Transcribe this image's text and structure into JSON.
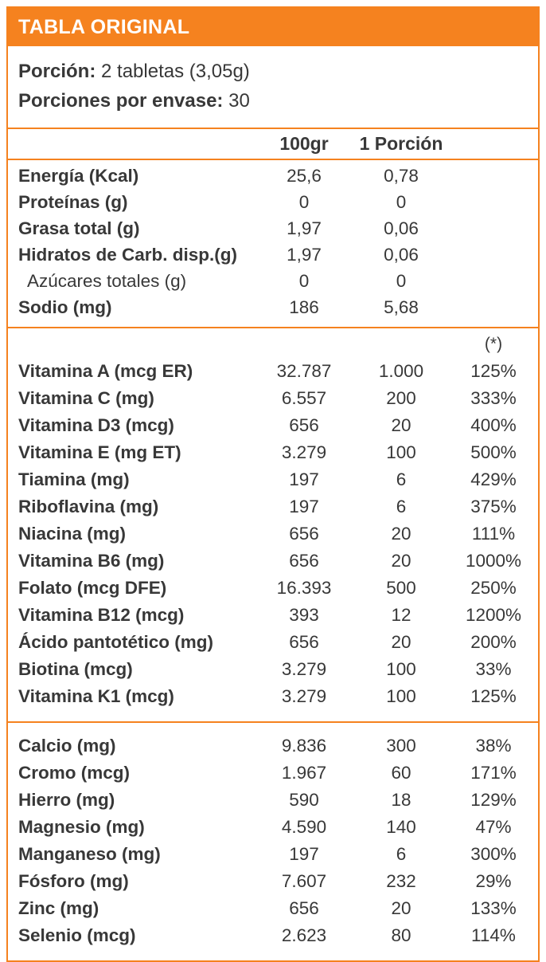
{
  "header": {
    "title": "TABLA ORIGINAL"
  },
  "serving": {
    "portion_label": "Porción:",
    "portion_value": "2 tabletas (3,05g)",
    "servings_label": "Porciones por envase:",
    "servings_value": "30"
  },
  "columns": {
    "per100": "100gr",
    "portion": "1 Porción",
    "pct_header": "(*)"
  },
  "colors": {
    "accent_orange": "#F5821F",
    "title_text": "#FFFFFF",
    "body_text": "#383838"
  },
  "nutrition": {
    "energy_rows": [
      {
        "label": "Energía (Kcal)",
        "per100": "25,6",
        "portion": "0,78",
        "pct": "",
        "indent": false
      },
      {
        "label": "Proteínas (g)",
        "per100": "0",
        "portion": "0",
        "pct": "",
        "indent": false
      },
      {
        "label": "Grasa total (g)",
        "per100": "1,97",
        "portion": "0,06",
        "pct": "",
        "indent": false
      },
      {
        "label": "Hidratos de Carb. disp.(g)",
        "per100": "1,97",
        "portion": "0,06",
        "pct": "",
        "indent": false
      },
      {
        "label": "Azúcares totales (g)",
        "per100": "0",
        "portion": "0",
        "pct": "",
        "indent": true
      },
      {
        "label": "Sodio (mg)",
        "per100": "186",
        "portion": "5,68",
        "pct": "",
        "indent": false
      }
    ],
    "vitamin_rows": [
      {
        "label": "Vitamina A (mcg ER)",
        "per100": "32.787",
        "portion": "1.000",
        "pct": "125%",
        "indent": false
      },
      {
        "label": "Vitamina C (mg)",
        "per100": "6.557",
        "portion": "200",
        "pct": "333%",
        "indent": false
      },
      {
        "label": "Vitamina D3 (mcg)",
        "per100": "656",
        "portion": "20",
        "pct": "400%",
        "indent": false
      },
      {
        "label": "Vitamina E (mg ET)",
        "per100": "3.279",
        "portion": "100",
        "pct": "500%",
        "indent": false
      },
      {
        "label": "Tiamina (mg)",
        "per100": "197",
        "portion": "6",
        "pct": "429%",
        "indent": false
      },
      {
        "label": "Riboflavina (mg)",
        "per100": "197",
        "portion": "6",
        "pct": "375%",
        "indent": false
      },
      {
        "label": "Niacina (mg)",
        "per100": "656",
        "portion": "20",
        "pct": "111%",
        "indent": false
      },
      {
        "label": "Vitamina B6 (mg)",
        "per100": "656",
        "portion": "20",
        "pct": "1000%",
        "indent": false
      },
      {
        "label": "Folato (mcg DFE)",
        "per100": "16.393",
        "portion": "500",
        "pct": "250%",
        "indent": false
      },
      {
        "label": "Vitamina B12 (mcg)",
        "per100": "393",
        "portion": "12",
        "pct": "1200%",
        "indent": false
      },
      {
        "label": "Ácido pantotético (mg)",
        "per100": "656",
        "portion": "20",
        "pct": "200%",
        "indent": false
      },
      {
        "label": "Biotina (mcg)",
        "per100": "3.279",
        "portion": "100",
        "pct": "33%",
        "indent": false
      },
      {
        "label": "Vitamina K1 (mcg)",
        "per100": "3.279",
        "portion": "100",
        "pct": "125%",
        "indent": false
      }
    ],
    "mineral_rows": [
      {
        "label": "Calcio (mg)",
        "per100": "9.836",
        "portion": "300",
        "pct": "38%",
        "indent": false
      },
      {
        "label": "Cromo (mcg)",
        "per100": "1.967",
        "portion": "60",
        "pct": "171%",
        "indent": false
      },
      {
        "label": "Hierro (mg)",
        "per100": "590",
        "portion": "18",
        "pct": "129%",
        "indent": false
      },
      {
        "label": "Magnesio (mg)",
        "per100": "4.590",
        "portion": "140",
        "pct": "47%",
        "indent": false
      },
      {
        "label": "Manganeso (mg)",
        "per100": "197",
        "portion": "6",
        "pct": "300%",
        "indent": false
      },
      {
        "label": "Fósforo (mg)",
        "per100": "7.607",
        "portion": "232",
        "pct": "29%",
        "indent": false
      },
      {
        "label": "Zinc (mg)",
        "per100": "656",
        "portion": "20",
        "pct": "133%",
        "indent": false
      },
      {
        "label": "Selenio (mcg)",
        "per100": "2.623",
        "portion": "80",
        "pct": "114%",
        "indent": false
      }
    ]
  }
}
